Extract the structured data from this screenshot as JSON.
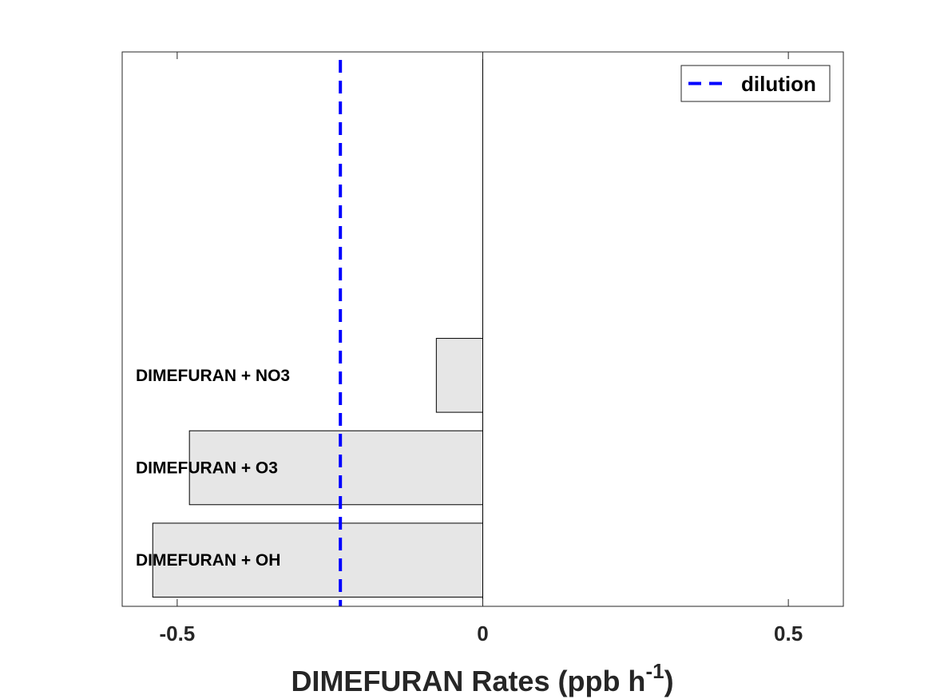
{
  "chart_data": {
    "type": "bar",
    "orientation": "horizontal",
    "categories": [
      "DIMEFURAN + OH",
      "DIMEFURAN + O3",
      "DIMEFURAN + NO3"
    ],
    "values": [
      -0.54,
      -0.48,
      -0.076
    ],
    "xlim": [
      -0.59,
      0.59
    ],
    "xticks": [
      -0.5,
      0,
      0.5
    ],
    "xtick_labels": [
      "-0.5",
      "0",
      "0.5"
    ],
    "xlabel": "DIMEFURAN Rates (ppb h",
    "xlabel_superscript": "-1",
    "xlabel_suffix": ")",
    "reference_line": {
      "name": "dilution",
      "x": -0.233,
      "style": "dashed",
      "color": "#0000ff"
    },
    "legend": {
      "entries": [
        "dilution"
      ],
      "position": "top-right"
    },
    "grid": false,
    "bar_color": "#e6e6e6"
  }
}
